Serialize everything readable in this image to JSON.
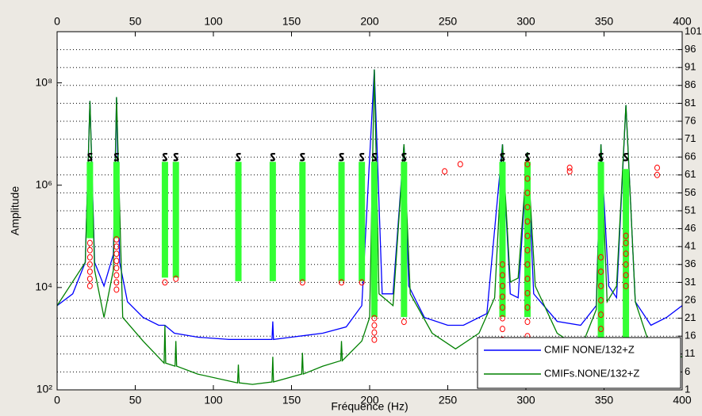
{
  "chart_data": {
    "type": "line",
    "xlabel": "Fréquence (Hz)",
    "ylabel": "Amplitude",
    "xlim": [
      0,
      400
    ],
    "xticks": [
      0,
      50,
      100,
      150,
      200,
      250,
      300,
      350,
      400
    ],
    "ylim": [
      100,
      1000000000
    ],
    "yticks": [
      {
        "value": 100,
        "label": "10²"
      },
      {
        "value": 10000,
        "label": "10⁴"
      },
      {
        "value": 1000000,
        "label": "10⁶"
      },
      {
        "value": 100000000,
        "label": "10⁸"
      }
    ],
    "log_y": true,
    "y2lim": [
      1,
      101
    ],
    "y2ticks": [
      1,
      6,
      11,
      16,
      21,
      26,
      31,
      36,
      41,
      46,
      51,
      56,
      61,
      66,
      71,
      76,
      81,
      86,
      91,
      96,
      101
    ],
    "grid": true,
    "legend": "lower right",
    "series": [
      {
        "name": "CMIF NONE/132+Z",
        "color": "#0000ff",
        "x": [
          0,
          10,
          18,
          21,
          24,
          30,
          36,
          38,
          40,
          45,
          55,
          65,
          69,
          75,
          90,
          110,
          130,
          137.5,
          138,
          138.5,
          150,
          170,
          185,
          195,
          203,
          208,
          215,
          222,
          225,
          235,
          250,
          260,
          275,
          285,
          290,
          295,
          301,
          305,
          320,
          335,
          345,
          348,
          353,
          358,
          364,
          370,
          380,
          390,
          400
        ],
        "values": [
          4430,
          7530,
          31000,
          44300000,
          31000,
          10700,
          44300,
          52800000,
          31000,
          5280,
          2600,
          1828,
          1828,
          1282,
          1073,
          966,
          966,
          966,
          2180,
          966,
          1073,
          1282,
          1702,
          4430,
          183000000,
          7530,
          7530,
          6310000,
          10700,
          2600,
          1828,
          1828,
          3100,
          6310000,
          7530,
          6310,
          4430000,
          7530,
          2180,
          1828,
          4430,
          6310000,
          10700,
          6310,
          37000000,
          5280,
          1828,
          2600,
          4430
        ]
      },
      {
        "name": "CMIFs.NONE/132+Z",
        "color": "#008000",
        "x": [
          0,
          18,
          21,
          24,
          30,
          36,
          38,
          42,
          55,
          68.5,
          69,
          69.5,
          75.5,
          76,
          76.5,
          90,
          115.5,
          116,
          116.5,
          125,
          137.5,
          138,
          138.5,
          156.5,
          157,
          157.5,
          170,
          181.5,
          182,
          182.5,
          195,
          200,
          203,
          206,
          215,
          222,
          226,
          240,
          255,
          270,
          280,
          285,
          290,
          295,
          301,
          306,
          320,
          335,
          345,
          348,
          352,
          358,
          364,
          370,
          380,
          388,
          390,
          392,
          400
        ],
        "values": [
          4430,
          31000,
          44300000,
          21800,
          2600,
          21800,
          52800000,
          2600,
          899,
          333,
          1828,
          333,
          290,
          899,
          290,
          203,
          137,
          311,
          137,
          128,
          143,
          443,
          143,
          203,
          528,
          203,
          290,
          371,
          899,
          371,
          899,
          2600,
          183000000,
          7530,
          4430,
          6310000,
          7530,
          1282,
          631,
          1282,
          6310,
          6310000,
          12800,
          15300,
          4430000,
          10700,
          1282,
          631,
          3700,
          6310000,
          5280,
          10700,
          37000000,
          5280,
          631,
          443,
          631,
          443,
          443
        ]
      }
    ],
    "stabilization": {
      "green_color": "#33ff33",
      "red_color": "#ff0000",
      "stable_color": "#000000",
      "columns": [
        {
          "freq": 21,
          "stable": 66,
          "green": [
            44,
            64
          ],
          "red": [
            30,
            32,
            34,
            36,
            38,
            40,
            42
          ]
        },
        {
          "freq": 38,
          "stable": 66,
          "green": [
            44,
            64
          ],
          "red": [
            29,
            31,
            33,
            35,
            37,
            39,
            41,
            43
          ]
        },
        {
          "freq": 69,
          "stable": 66,
          "green": [
            33,
            64
          ],
          "red": [
            31
          ]
        },
        {
          "freq": 76,
          "stable": 66,
          "green": [
            33,
            64
          ],
          "red": [
            32
          ]
        },
        {
          "freq": 116,
          "stable": 66,
          "green": [
            32,
            64
          ],
          "red": []
        },
        {
          "freq": 138,
          "stable": 66,
          "green": [
            32,
            64
          ],
          "red": []
        },
        {
          "freq": 157,
          "stable": 66,
          "green": [
            32,
            64
          ],
          "red": [
            31
          ]
        },
        {
          "freq": 182,
          "stable": 66,
          "green": [
            32,
            64
          ],
          "red": [
            31
          ]
        },
        {
          "freq": 195,
          "stable": 66,
          "green": [
            32,
            64
          ],
          "red": [
            31
          ]
        },
        {
          "freq": 203,
          "stable": 66,
          "green": [
            22,
            64
          ],
          "red": [
            15,
            17,
            19,
            21
          ]
        },
        {
          "freq": 222,
          "stable": 66,
          "green": [
            22,
            64
          ],
          "red": [
            20
          ]
        },
        {
          "freq": 285,
          "stable": 66,
          "green": [
            22,
            64
          ],
          "red": [
            6,
            9,
            12,
            15,
            18,
            21,
            24,
            27,
            30,
            33,
            36
          ]
        },
        {
          "freq": 301,
          "stable": 66,
          "green": [
            22,
            64
          ],
          "red": [
            8,
            12,
            16,
            20,
            24,
            28,
            32,
            36,
            40,
            44,
            48,
            52,
            56,
            60,
            64
          ]
        },
        {
          "freq": 348,
          "stable": 66,
          "green": [
            10,
            64
          ],
          "red": [
            10,
            14,
            18,
            22,
            26,
            30,
            34,
            38
          ]
        },
        {
          "freq": 364,
          "stable": 66,
          "green": [
            10,
            62
          ],
          "red": [
            30,
            33,
            36,
            39,
            42,
            44
          ]
        },
        {
          "freq": 248,
          "stable": null,
          "green": null,
          "red": [
            62
          ]
        },
        {
          "freq": 258,
          "stable": null,
          "green": null,
          "red": [
            64
          ]
        },
        {
          "freq": 328,
          "stable": null,
          "green": null,
          "red": [
            62,
            63
          ]
        },
        {
          "freq": 384,
          "stable": null,
          "green": null,
          "red": [
            61,
            63
          ]
        }
      ]
    }
  }
}
